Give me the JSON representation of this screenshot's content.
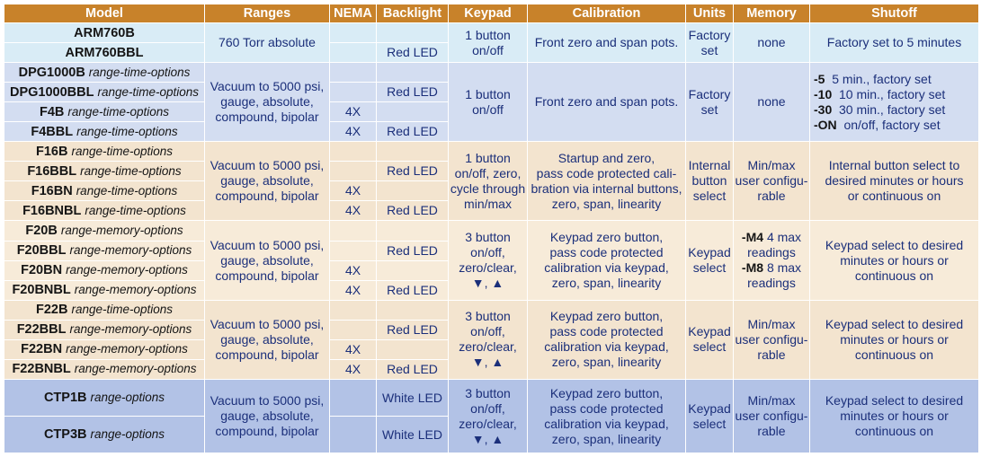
{
  "headers": [
    "Model",
    "Ranges",
    "NEMA",
    "Backlight",
    "Keypad",
    "Calibration",
    "Units",
    "Memory",
    "Shutoff"
  ],
  "groups": {
    "arm": {
      "models": [
        {
          "name": "ARM760B",
          "option": ""
        },
        {
          "name": "ARM760BBL",
          "option": ""
        }
      ],
      "ranges": [
        "760 Torr absolute"
      ],
      "nema": [
        "",
        ""
      ],
      "backlight": [
        "",
        "Red LED"
      ],
      "keypad": [
        "1 button",
        "on/off"
      ],
      "calibration": [
        "Front zero and span pots."
      ],
      "units": [
        "Factory",
        "set"
      ],
      "memory": [
        "none"
      ],
      "shutoff": [
        "Factory set to 5 minutes"
      ]
    },
    "dpg": {
      "models": [
        {
          "name": "DPG1000B",
          "option": "range-time-options"
        },
        {
          "name": "DPG1000BBL",
          "option": "range-time-options"
        },
        {
          "name": "F4B",
          "option": "range-time-options"
        },
        {
          "name": "F4BBL",
          "option": "range-time-options"
        }
      ],
      "ranges": [
        "Vacuum to 5000 psi,",
        "gauge, absolute,",
        "compound, bipolar"
      ],
      "nema": [
        "",
        "",
        "4X",
        "4X"
      ],
      "backlight": [
        "",
        "Red LED",
        "",
        "Red LED"
      ],
      "keypad": [
        "1 button",
        "on/off"
      ],
      "calibration": [
        "Front zero and span pots."
      ],
      "units": [
        "Factory",
        "set"
      ],
      "memory": [
        "none"
      ],
      "shutoff": [
        {
          "code": "-5",
          "text": "5 min., factory set"
        },
        {
          "code": "-10",
          "text": "10 min., factory set"
        },
        {
          "code": "-30",
          "text": "30 min., factory set"
        },
        {
          "code": "-ON",
          "text": "on/off, factory set"
        }
      ]
    },
    "f16": {
      "models": [
        {
          "name": "F16B",
          "option": "range-time-options"
        },
        {
          "name": "F16BBL",
          "option": "range-time-options"
        },
        {
          "name": "F16BN",
          "option": "range-time-options"
        },
        {
          "name": "F16BNBL",
          "option": "range-time-options"
        }
      ],
      "ranges": [
        "Vacuum to 5000 psi,",
        "gauge, absolute,",
        "compound, bipolar"
      ],
      "nema": [
        "",
        "",
        "4X",
        "4X"
      ],
      "backlight": [
        "",
        "Red LED",
        "",
        "Red LED"
      ],
      "keypad": [
        "1 button",
        "on/off, zero,",
        "cycle through",
        "min/max"
      ],
      "calibration": [
        "Startup and zero,",
        "pass code protected cali-",
        "bration via internal buttons,",
        "zero, span, linearity"
      ],
      "units": [
        "Internal",
        "button",
        "select"
      ],
      "memory": [
        "Min/max",
        "user configu-",
        "rable"
      ],
      "shutoff": [
        "Internal button select to",
        "desired minutes or hours",
        "or continuous on"
      ]
    },
    "f20": {
      "models": [
        {
          "name": "F20B",
          "option": "range-memory-options"
        },
        {
          "name": "F20BBL",
          "option": "range-memory-options"
        },
        {
          "name": "F20BN",
          "option": "range-memory-options"
        },
        {
          "name": "F20BNBL",
          "option": "range-memory-options"
        }
      ],
      "ranges": [
        "Vacuum to 5000 psi,",
        "gauge, absolute,",
        "compound, bipolar"
      ],
      "nema": [
        "",
        "",
        "4X",
        "4X"
      ],
      "backlight": [
        "",
        "Red LED",
        "",
        "Red LED"
      ],
      "keypad": [
        "3 button",
        "on/off,",
        "zero/clear,",
        "▼, ▲"
      ],
      "calibration": [
        "Keypad zero button,",
        "pass code protected",
        "calibration via keypad,",
        "zero, span, linearity"
      ],
      "units": [
        "Keypad",
        "select"
      ],
      "memory": [
        {
          "code": "-M4",
          "text": "4 max"
        },
        {
          "code": "",
          "text": "readings"
        },
        {
          "code": "-M8",
          "text": "8 max"
        },
        {
          "code": "",
          "text": "readings"
        }
      ],
      "shutoff": [
        "Keypad select to desired",
        "minutes or hours or",
        "continuous on"
      ]
    },
    "f22": {
      "models": [
        {
          "name": "F22B",
          "option": "range-time-options"
        },
        {
          "name": "F22BBL",
          "option": "range-memory-options"
        },
        {
          "name": "F22BN",
          "option": "range-memory-options"
        },
        {
          "name": "F22BNBL",
          "option": "range-memory-options"
        }
      ],
      "ranges": [
        "Vacuum to 5000 psi,",
        "gauge, absolute,",
        "compound, bipolar"
      ],
      "nema": [
        "",
        "",
        "4X",
        "4X"
      ],
      "backlight": [
        "",
        "Red LED",
        "",
        "Red LED"
      ],
      "keypad": [
        "3 button",
        "on/off,",
        "zero/clear,",
        "▼, ▲"
      ],
      "calibration": [
        "Keypad zero button,",
        "pass code protected",
        "calibration via keypad,",
        "zero, span, linearity"
      ],
      "units": [
        "Keypad",
        "select"
      ],
      "memory": [
        "Min/max",
        "user configu-",
        "rable"
      ],
      "shutoff": [
        "Keypad select to desired",
        "minutes or hours or",
        "continuous on"
      ]
    },
    "ctp": {
      "models": [
        {
          "name": "CTP1B",
          "option": "range-options"
        },
        {
          "name": "CTP3B",
          "option": "range-options"
        }
      ],
      "ranges": [
        "Vacuum to 5000 psi,",
        "gauge, absolute,",
        "compound, bipolar"
      ],
      "nema": [
        "",
        ""
      ],
      "backlight": [
        "White LED",
        "White LED"
      ],
      "keypad": [
        "3 button",
        "on/off,",
        "zero/clear,",
        "▼, ▲"
      ],
      "calibration": [
        "Keypad zero button,",
        "pass code protected",
        "calibration via keypad,",
        "zero, span, linearity"
      ],
      "units": [
        "Keypad",
        "select"
      ],
      "memory": [
        "Min/max",
        "user configu-",
        "rable"
      ],
      "shutoff": [
        "Keypad select to desired",
        "minutes or hours or",
        "continuous on"
      ]
    }
  },
  "colors": {
    "header": "#c8822a",
    "arm": "#d9ecf6",
    "dpg": "#d3ddf1",
    "f16": "#f3e4cf",
    "f20": "#f7ebd9",
    "f22": "#f3e4cf",
    "ctp": "#b2c2e6",
    "text": "#1b2f7a"
  }
}
